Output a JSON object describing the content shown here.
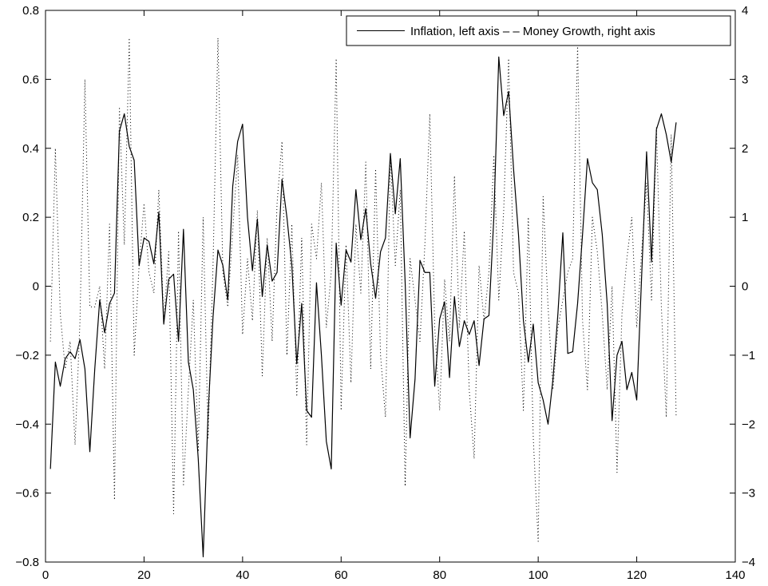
{
  "chart_data": {
    "type": "line",
    "title": "",
    "xlabel": "",
    "ylabel_left": "",
    "ylabel_right": "",
    "xlim": [
      0,
      140
    ],
    "ylim_left": [
      -0.8,
      0.8
    ],
    "ylim_right": [
      -4,
      4
    ],
    "x_ticks": [
      "0",
      "20",
      "40",
      "60",
      "80",
      "100",
      "120",
      "140"
    ],
    "y_left_ticks": [
      "−0.8",
      "−0.6",
      "−0.4",
      "−0.2",
      "0",
      "0.2",
      "0.4",
      "0.6",
      "0.8"
    ],
    "y_right_ticks": [
      "−4",
      "−3",
      "−2",
      "−1",
      "0",
      "1",
      "2",
      "3",
      "4"
    ],
    "grid": false,
    "legend_position": "top-right",
    "legend_text": "Inflation, left axis – – Money Growth, right axis",
    "series": [
      {
        "name": "Inflation, left axis",
        "axis": "left",
        "style": "solid",
        "color": "#000000",
        "x": [
          1,
          2,
          3,
          4,
          5,
          6,
          7,
          8,
          9,
          10,
          11,
          12,
          13,
          14,
          15,
          16,
          17,
          18,
          19,
          20,
          21,
          22,
          23,
          24,
          25,
          26,
          27,
          28,
          29,
          30,
          31,
          32,
          33,
          34,
          35,
          36,
          37,
          38,
          39,
          40,
          41,
          42,
          43,
          44,
          45,
          46,
          47,
          48,
          49,
          50,
          51,
          52,
          53,
          54,
          55,
          56,
          57,
          58,
          59,
          60,
          61,
          62,
          63,
          64,
          65,
          66,
          67,
          68,
          69,
          70,
          71,
          72,
          73,
          74,
          75,
          76,
          77,
          78,
          79,
          80,
          81,
          82,
          83,
          84,
          85,
          86,
          87,
          88,
          89,
          90,
          91,
          92,
          93,
          94,
          95,
          96,
          97,
          98,
          99,
          100,
          101,
          102,
          103,
          104,
          105,
          106,
          107,
          108,
          109,
          110,
          111,
          112,
          113,
          114,
          115,
          116,
          117,
          118,
          119,
          120,
          121,
          122,
          123,
          124,
          125,
          126,
          127,
          128
        ],
        "y": [
          -0.53,
          -0.22,
          -0.29,
          -0.21,
          -0.19,
          -0.21,
          -0.155,
          -0.24,
          -0.48,
          -0.24,
          -0.04,
          -0.135,
          -0.05,
          -0.02,
          0.45,
          0.5,
          0.405,
          0.365,
          0.06,
          0.14,
          0.13,
          0.065,
          0.215,
          -0.11,
          0.02,
          0.035,
          -0.16,
          0.165,
          -0.22,
          -0.3,
          -0.5,
          -0.785,
          -0.37,
          -0.09,
          0.105,
          0.06,
          -0.04,
          0.29,
          0.42,
          0.47,
          0.2,
          0.045,
          0.195,
          -0.03,
          0.12,
          0.015,
          0.04,
          0.31,
          0.2,
          0.06,
          -0.225,
          -0.05,
          -0.36,
          -0.38,
          0.01,
          -0.2,
          -0.45,
          -0.53,
          0.125,
          -0.055,
          0.105,
          0.07,
          0.28,
          0.135,
          0.225,
          0.065,
          -0.035,
          0.1,
          0.14,
          0.385,
          0.21,
          0.37,
          0.01,
          -0.44,
          -0.27,
          0.075,
          0.04,
          0.04,
          -0.29,
          -0.095,
          -0.045,
          -0.265,
          -0.03,
          -0.175,
          -0.1,
          -0.14,
          -0.1,
          -0.23,
          -0.095,
          -0.085,
          0.2,
          0.665,
          0.495,
          0.565,
          0.34,
          0.15,
          -0.1,
          -0.22,
          -0.11,
          -0.28,
          -0.33,
          -0.4,
          -0.27,
          -0.08,
          0.155,
          -0.195,
          -0.19,
          -0.05,
          0.15,
          0.37,
          0.3,
          0.28,
          0.15,
          -0.05,
          -0.39,
          -0.2,
          -0.16,
          -0.3,
          -0.25,
          -0.33,
          0.03,
          0.39,
          0.07,
          0.455,
          0.5,
          0.44,
          0.36,
          0.475
        ]
      },
      {
        "name": "Money Growth, right axis",
        "axis": "right",
        "style": "dotted",
        "color": "#000000",
        "x": [
          1,
          2,
          3,
          4,
          5,
          6,
          7,
          8,
          9,
          10,
          11,
          12,
          13,
          14,
          15,
          16,
          17,
          18,
          19,
          20,
          21,
          22,
          23,
          24,
          25,
          26,
          27,
          28,
          29,
          30,
          31,
          32,
          33,
          34,
          35,
          36,
          37,
          38,
          39,
          40,
          41,
          42,
          43,
          44,
          45,
          46,
          47,
          48,
          49,
          50,
          51,
          52,
          53,
          54,
          55,
          56,
          57,
          58,
          59,
          60,
          61,
          62,
          63,
          64,
          65,
          66,
          67,
          68,
          69,
          70,
          71,
          72,
          73,
          74,
          75,
          76,
          77,
          78,
          79,
          80,
          81,
          82,
          83,
          84,
          85,
          86,
          87,
          88,
          89,
          90,
          91,
          92,
          93,
          94,
          95,
          96,
          97,
          98,
          99,
          100,
          101,
          102,
          103,
          104,
          105,
          106,
          107,
          108,
          109,
          110,
          111,
          112,
          113,
          114,
          115,
          116,
          117,
          118,
          119,
          120,
          121,
          122,
          123,
          124,
          125,
          126,
          127,
          128
        ],
        "y": [
          -0.8,
          2.0,
          -0.4,
          -1.2,
          -0.8,
          -2.3,
          -0.5,
          3.0,
          -0.3,
          -0.3,
          0.0,
          -1.2,
          0.9,
          -3.1,
          2.6,
          0.6,
          3.6,
          -1.0,
          0.3,
          1.2,
          0.2,
          -0.1,
          1.4,
          -0.5,
          0.5,
          -3.3,
          0.8,
          -2.9,
          -1.5,
          -0.2,
          -2.4,
          1.0,
          -2.2,
          0.3,
          3.6,
          0.2,
          -0.3,
          0.8,
          1.9,
          -0.7,
          0.4,
          -0.5,
          1.1,
          -1.3,
          0.7,
          -0.8,
          1.2,
          2.1,
          -1.0,
          0.9,
          -1.6,
          0.7,
          -2.3,
          0.9,
          0.4,
          1.5,
          -0.6,
          0.2,
          3.3,
          -1.8,
          0.6,
          -1.4,
          0.9,
          -0.1,
          1.8,
          -1.2,
          1.7,
          -1.0,
          -1.9,
          1.9,
          0.3,
          1.4,
          -2.9,
          0.4,
          -0.2,
          -0.8,
          0.6,
          2.5,
          -0.6,
          -1.8,
          0.1,
          -0.8,
          1.6,
          -0.6,
          0.8,
          -1.5,
          -2.5,
          0.3,
          -0.5,
          0.2,
          1.9,
          -0.2,
          1.1,
          3.3,
          0.2,
          -0.1,
          -1.8,
          1.0,
          -2.2,
          -3.7,
          1.3,
          -0.3,
          -1.5,
          -0.6,
          -0.2,
          0.2,
          0.4,
          3.5,
          -0.5,
          -1.5,
          1.0,
          0.5,
          -0.4,
          -1.5,
          0.0,
          -2.7,
          -0.4,
          0.4,
          1.0,
          -0.6,
          0.5,
          1.5,
          -0.2,
          2.3,
          -0.3,
          -1.9,
          2.2,
          -1.9
        ]
      }
    ]
  }
}
